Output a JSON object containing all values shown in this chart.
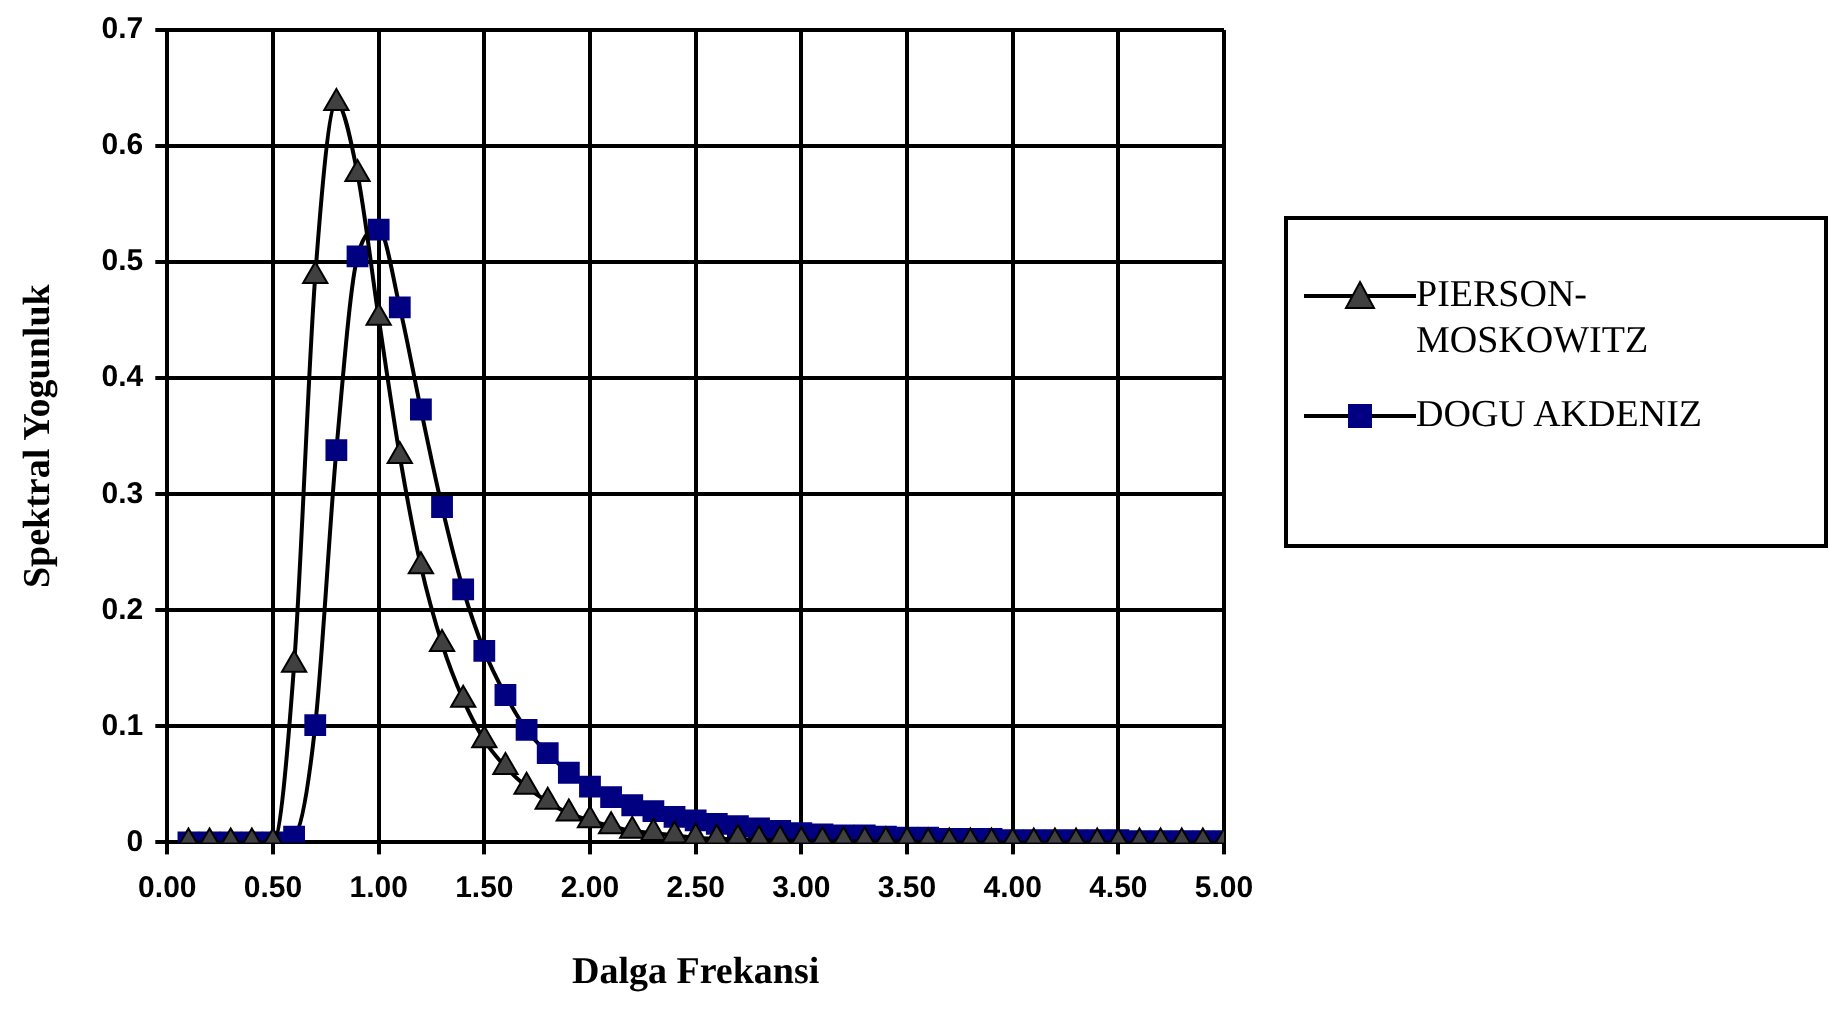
{
  "chart_data": {
    "type": "line",
    "xlabel": "Dalga Frekansi",
    "ylabel": "Spektral Yogunluk",
    "x": [
      0.1,
      0.2,
      0.3,
      0.4,
      0.5,
      0.6,
      0.7,
      0.8,
      0.9,
      1.0,
      1.1,
      1.2,
      1.3,
      1.4,
      1.5,
      1.6,
      1.7,
      1.8,
      1.9,
      2.0,
      2.1,
      2.2,
      2.3,
      2.4,
      2.5,
      2.6,
      2.7,
      2.8,
      2.9,
      3.0,
      3.1,
      3.2,
      3.3,
      3.4,
      3.5,
      3.6,
      3.7,
      3.8,
      3.9,
      4.0,
      4.1,
      4.2,
      4.3,
      4.4,
      4.5,
      4.6,
      4.7,
      4.8,
      4.9,
      5.0
    ],
    "series": [
      {
        "name": "PIERSON-MOSKOWITZ",
        "color": "#404040",
        "marker": "triangle",
        "values": [
          0,
          0,
          0,
          0,
          0,
          0.153,
          0.488,
          0.637,
          0.576,
          0.452,
          0.333,
          0.238,
          0.171,
          0.123,
          0.088,
          0.065,
          0.048,
          0.035,
          0.025,
          0.019,
          0.014,
          0.01,
          0.008,
          0.006,
          0.004,
          0.003,
          0.003,
          0.002,
          0.002,
          0.001,
          0.001,
          0.001,
          0.001,
          0.001,
          0.001,
          0,
          0,
          0,
          0,
          0,
          0,
          0,
          0,
          0,
          0,
          0,
          0,
          0,
          0,
          0
        ]
      },
      {
        "name": "DOGU AKDENIZ",
        "color": "#000080",
        "marker": "square",
        "values": [
          0,
          0,
          0,
          0,
          0,
          0.005,
          0.101,
          0.338,
          0.505,
          0.528,
          0.461,
          0.373,
          0.289,
          0.218,
          0.165,
          0.127,
          0.097,
          0.077,
          0.06,
          0.048,
          0.039,
          0.032,
          0.027,
          0.022,
          0.019,
          0.016,
          0.014,
          0.012,
          0.01,
          0.008,
          0.007,
          0.006,
          0.006,
          0.005,
          0.004,
          0.004,
          0.003,
          0.003,
          0.003,
          0.002,
          0.002,
          0.002,
          0.002,
          0.002,
          0.002,
          0.001,
          0.001,
          0.001,
          0.001,
          0.001
        ]
      }
    ],
    "xlim": [
      0,
      5
    ],
    "xticks": [
      {
        "value": 0,
        "label": "0.00"
      },
      {
        "value": 0.5,
        "label": "0.50"
      },
      {
        "value": 1,
        "label": "1.00"
      },
      {
        "value": 1.5,
        "label": "1.50"
      },
      {
        "value": 2,
        "label": "2.00"
      },
      {
        "value": 2.5,
        "label": "2.50"
      },
      {
        "value": 3,
        "label": "3.00"
      },
      {
        "value": 3.5,
        "label": "3.50"
      },
      {
        "value": 4,
        "label": "4.00"
      },
      {
        "value": 4.5,
        "label": "4.50"
      },
      {
        "value": 5,
        "label": "5.00"
      }
    ],
    "ylim": [
      0,
      0.7
    ],
    "yticks": [
      0,
      0.1,
      0.2,
      0.3,
      0.4,
      0.5,
      0.6,
      0.7
    ],
    "grid": true,
    "legend": "right",
    "line_style": "solid"
  }
}
